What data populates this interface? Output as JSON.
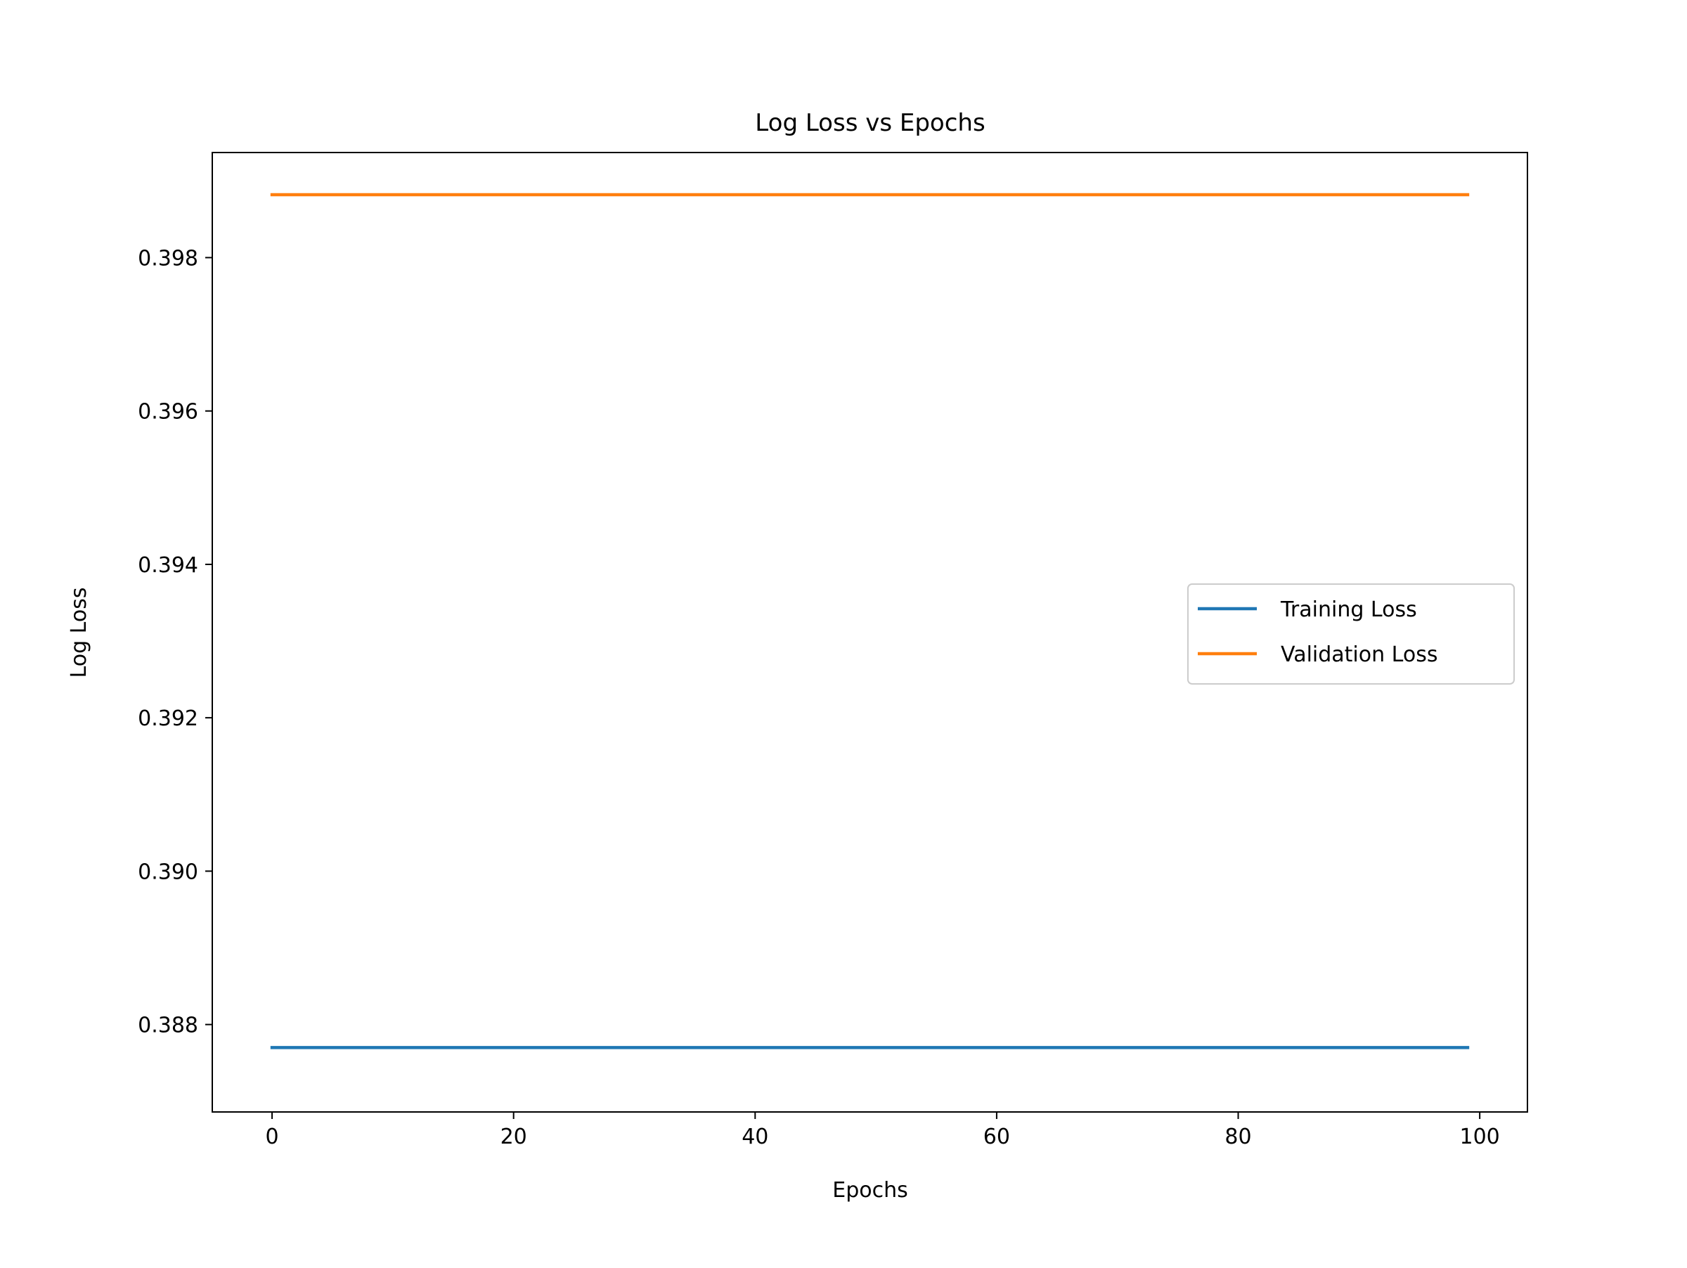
{
  "chart_data": {
    "type": "line",
    "title": "Log Loss vs Epochs",
    "xlabel": "Epochs",
    "ylabel": "Log Loss",
    "xlim": [
      -4.95,
      103.95
    ],
    "ylim": [
      0.38686,
      0.39937
    ],
    "xticks": [
      0,
      20,
      40,
      60,
      80,
      100
    ],
    "xtick_labels": [
      "0",
      "20",
      "40",
      "60",
      "80",
      "100"
    ],
    "yticks": [
      0.388,
      0.39,
      0.392,
      0.394,
      0.396,
      0.398
    ],
    "ytick_labels": [
      "0.388",
      "0.390",
      "0.392",
      "0.394",
      "0.396",
      "0.398"
    ],
    "grid": false,
    "legend_position": "center-right",
    "x": [
      0,
      99
    ],
    "series": [
      {
        "name": "Training Loss",
        "color": "#1f77b4",
        "values": [
          0.3877,
          0.3877
        ]
      },
      {
        "name": "Validation Loss",
        "color": "#ff7f0e",
        "values": [
          0.39882,
          0.39882
        ]
      }
    ]
  }
}
